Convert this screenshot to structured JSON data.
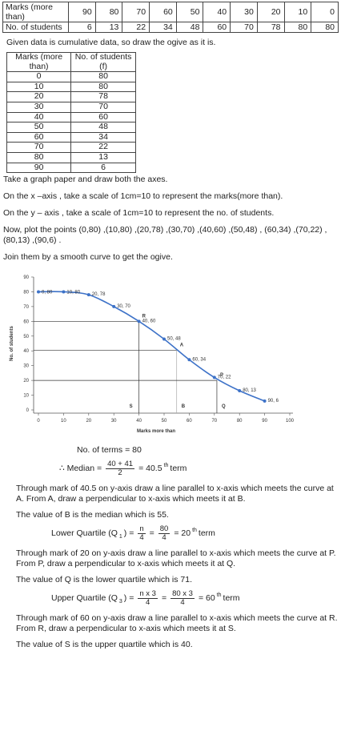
{
  "table1": {
    "rows": [
      [
        "Marks (more than)",
        90,
        80,
        70,
        60,
        50,
        40,
        30,
        20,
        10,
        0
      ],
      [
        "No. of students",
        6,
        13,
        22,
        34,
        48,
        60,
        70,
        78,
        80,
        80
      ]
    ]
  },
  "note": "Given data is cumulative data, so draw the ogive as it is.",
  "table2": {
    "header": [
      "Marks (more than)",
      "No. of students (f)"
    ],
    "rows": [
      [
        0,
        80
      ],
      [
        10,
        80
      ],
      [
        20,
        78
      ],
      [
        30,
        70
      ],
      [
        40,
        60
      ],
      [
        50,
        48
      ],
      [
        60,
        34
      ],
      [
        70,
        22
      ],
      [
        80,
        13
      ],
      [
        90,
        6
      ]
    ]
  },
  "steps": [
    "Take a graph paper and draw both the axes.",
    "On the x –axis , take a scale of 1cm=10 to represent the marks(more than).",
    "On the y – axis , take a scale of 1cm=10 to represent the no. of students.",
    "Now, plot the points (0,80) ,(10,80) ,(20,78) ,(30,70) ,(40,60) ,(50,48) , (60,34) ,(70,22) ,(80,13) ,(90,6) .",
    "Join them by a smooth curve to get the ogive."
  ],
  "chart_data": {
    "type": "line",
    "xlabel": "Marks more than",
    "ylabel": "No. of students",
    "x": [
      0,
      10,
      20,
      30,
      40,
      50,
      60,
      70,
      80,
      90
    ],
    "series": [
      {
        "color": "#3d72c8",
        "values": [
          80,
          80,
          78,
          70,
          60,
          48,
          34,
          22,
          13,
          6
        ],
        "value_labels": [
          "0, 80",
          "10, 80",
          "20, 78",
          "30, 70",
          "40, 60",
          "50, 48",
          "60, 34",
          "70, 22",
          "80, 13",
          "90, 6"
        ]
      }
    ],
    "xlim": [
      0,
      100
    ],
    "xticks": [
      0,
      10,
      20,
      30,
      40,
      50,
      60,
      70,
      80,
      90,
      100
    ],
    "ylim": [
      0,
      90
    ],
    "yticks": [
      0,
      10,
      20,
      30,
      40,
      50,
      60,
      70,
      80,
      90
    ],
    "grid": false,
    "guides": [
      {
        "point": "R",
        "x": 40,
        "y": 60,
        "foot": "S"
      },
      {
        "point": "A",
        "x": 55,
        "y": 40.5,
        "foot": "B"
      },
      {
        "point": "P",
        "x": 71,
        "y": 20,
        "foot": "Q"
      }
    ]
  },
  "solution": {
    "terms": "No. of terms = 80",
    "blocks": [
      {
        "formula": [
          {
            "t": "∴ Median ="
          },
          {
            "num": "40 + 41",
            "den": "2"
          },
          {
            "t": "= 40.5"
          },
          {
            "sup": "th"
          },
          {
            "t": "term"
          }
        ],
        "text": "Through mark of 40.5 on y-axis draw a line parallel to x-axis which meets the curve at A. From A, draw a perpendicular to x-axis which meets it at B.",
        "result": "The value of B is the median which is 55."
      },
      {
        "formula": [
          {
            "t": "Lower Quartile (Q"
          },
          {
            "sub": "1"
          },
          {
            "t": ") ="
          },
          {
            "num": "n",
            "den": "4"
          },
          {
            "t": "="
          },
          {
            "num": "80",
            "den": "4"
          },
          {
            "t": "= 20"
          },
          {
            "sup": "th"
          },
          {
            "t": "term"
          }
        ],
        "text": "Through mark of 20 on y-axis draw a line parallel to x-axis which meets the curve at P. From P, draw a perpendicular to x-axis which meets it at Q.",
        "result": "The value of Q is the lower quartile which is 71."
      },
      {
        "formula": [
          {
            "t": "Upper Quartile (Q"
          },
          {
            "sub": "3"
          },
          {
            "t": ") ="
          },
          {
            "num": "n x 3",
            "den": "4"
          },
          {
            "t": "="
          },
          {
            "num": "80 x 3",
            "den": "4"
          },
          {
            "t": "= 60"
          },
          {
            "sup": "th"
          },
          {
            "t": "term"
          }
        ],
        "text": "Through mark of 60 on y-axis draw a line parallel to x-axis which meets the curve at R. From R, draw a perpendicular to x-axis which meets it at S.",
        "result": "The value of S is the upper quartile which is 40."
      }
    ]
  }
}
